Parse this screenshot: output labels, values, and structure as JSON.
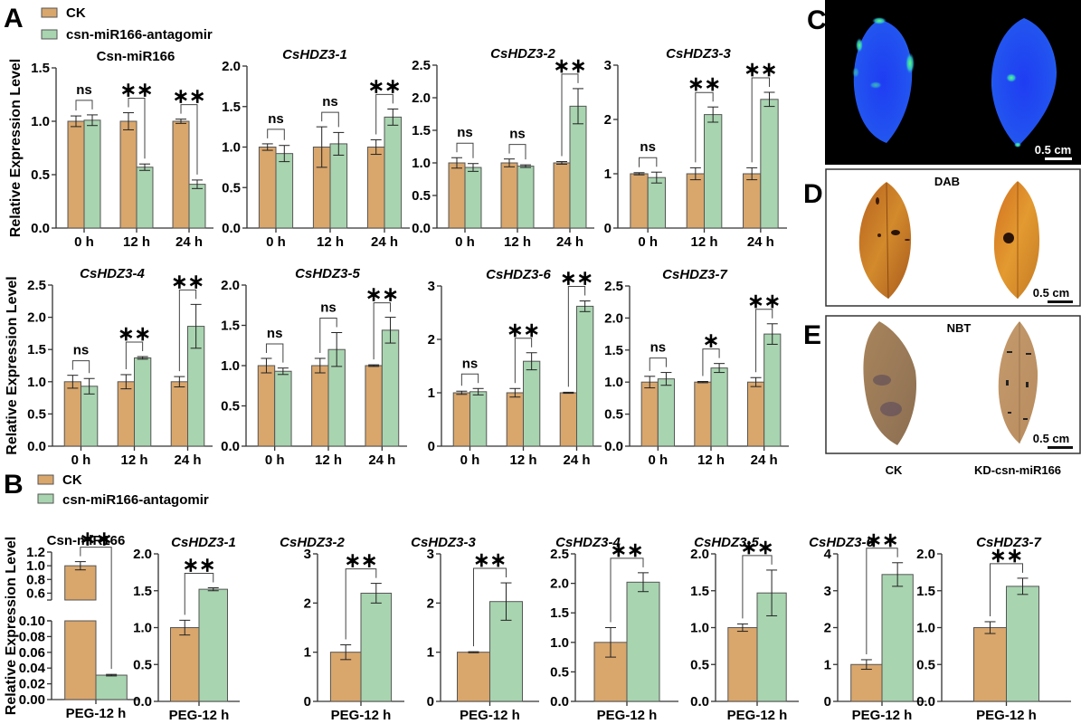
{
  "figure": {
    "panel_letters": [
      "A",
      "B",
      "C",
      "D",
      "E"
    ],
    "legend": [
      {
        "label": "CK",
        "color": "#d9a66c"
      },
      {
        "label": "csn-miR166-antagomir",
        "color": "#a8d4b0"
      }
    ],
    "y_axis_label": "Relative Expression Level",
    "colors": {
      "ck": "#d9a66c",
      "antagomir": "#a8d4b0",
      "axis": "#333333"
    }
  },
  "chart_data": [
    {
      "panel": "A",
      "type": "bar",
      "title": "Csn-miR166",
      "italic": false,
      "categories": [
        "0 h",
        "12 h",
        "24 h"
      ],
      "ylim": [
        0,
        1.5
      ],
      "yticks": [
        "0.0",
        "0.5",
        "1.0",
        "1.5"
      ],
      "ylabel": "Relative Expression Level",
      "series": [
        {
          "name": "CK",
          "values": [
            1.0,
            1.0,
            1.0
          ],
          "errors": [
            0.05,
            0.08,
            0.02
          ]
        },
        {
          "name": "csn-miR166-antagomir",
          "values": [
            1.01,
            0.57,
            0.41
          ],
          "errors": [
            0.05,
            0.03,
            0.04
          ]
        }
      ],
      "significance": [
        "ns",
        "**",
        "**"
      ]
    },
    {
      "panel": "A",
      "type": "bar",
      "title": "CsHDZ3-1",
      "italic": true,
      "categories": [
        "0 h",
        "12 h",
        "24 h"
      ],
      "ylim": [
        0,
        2.0
      ],
      "yticks": [
        "0.0",
        "0.5",
        "1.0",
        "1.5",
        "2.0"
      ],
      "ylabel": "",
      "series": [
        {
          "name": "CK",
          "values": [
            1.0,
            1.0,
            1.0
          ],
          "errors": [
            0.04,
            0.25,
            0.09
          ]
        },
        {
          "name": "csn-miR166-antagomir",
          "values": [
            0.92,
            1.04,
            1.37
          ],
          "errors": [
            0.1,
            0.14,
            0.1
          ]
        }
      ],
      "significance": [
        "ns",
        "ns",
        "**"
      ]
    },
    {
      "panel": "A",
      "type": "bar",
      "title": "CsHDZ3-2",
      "italic": true,
      "categories": [
        "0 h",
        "12 h",
        "24 h"
      ],
      "ylim": [
        0,
        2.5
      ],
      "yticks": [
        "0.0",
        "0.5",
        "1.0",
        "1.5",
        "2.0",
        "2.5"
      ],
      "ylabel": "",
      "series": [
        {
          "name": "CK",
          "values": [
            1.0,
            1.0,
            1.0
          ],
          "errors": [
            0.08,
            0.06,
            0.02
          ]
        },
        {
          "name": "csn-miR166-antagomir",
          "values": [
            0.93,
            0.95,
            1.87
          ],
          "errors": [
            0.06,
            0.02,
            0.27
          ]
        }
      ],
      "significance": [
        "ns",
        "ns",
        "**"
      ]
    },
    {
      "panel": "A",
      "type": "bar",
      "title": "CsHDZ3-3",
      "italic": true,
      "categories": [
        "0 h",
        "12 h",
        "24 h"
      ],
      "ylim": [
        0,
        3
      ],
      "yticks": [
        "0",
        "1",
        "2",
        "3"
      ],
      "ylabel": "",
      "series": [
        {
          "name": "CK",
          "values": [
            1.0,
            1.0,
            1.0
          ],
          "errors": [
            0.02,
            0.11,
            0.11
          ]
        },
        {
          "name": "csn-miR166-antagomir",
          "values": [
            0.93,
            2.09,
            2.37
          ],
          "errors": [
            0.1,
            0.14,
            0.13
          ]
        }
      ],
      "significance": [
        "ns",
        "**",
        "**"
      ]
    },
    {
      "panel": "A",
      "type": "bar",
      "title": "CsHDZ3-4",
      "italic": true,
      "categories": [
        "0 h",
        "12 h",
        "24 h"
      ],
      "ylim": [
        0,
        2.5
      ],
      "yticks": [
        "0.0",
        "0.5",
        "1.0",
        "1.5",
        "2.0",
        "2.5"
      ],
      "ylabel": "Relative Expression Level",
      "series": [
        {
          "name": "CK",
          "values": [
            1.0,
            1.0,
            1.0
          ],
          "errors": [
            0.1,
            0.11,
            0.08
          ]
        },
        {
          "name": "csn-miR166-antagomir",
          "values": [
            0.93,
            1.37,
            1.86
          ],
          "errors": [
            0.12,
            0.02,
            0.34
          ]
        }
      ],
      "significance": [
        "ns",
        "**",
        "**"
      ]
    },
    {
      "panel": "A",
      "type": "bar",
      "title": "CsHDZ3-5",
      "italic": true,
      "categories": [
        "0 h",
        "12 h",
        "24 h"
      ],
      "ylim": [
        0,
        2.0
      ],
      "yticks": [
        "0.0",
        "0.5",
        "1.0",
        "1.5",
        "2.0"
      ],
      "ylabel": "",
      "series": [
        {
          "name": "CK",
          "values": [
            1.0,
            1.0,
            1.0
          ],
          "errors": [
            0.09,
            0.09,
            0.01
          ]
        },
        {
          "name": "csn-miR166-antagomir",
          "values": [
            0.93,
            1.2,
            1.44
          ],
          "errors": [
            0.04,
            0.21,
            0.16
          ]
        }
      ],
      "significance": [
        "ns",
        "ns",
        "**"
      ]
    },
    {
      "panel": "A",
      "type": "bar",
      "title": "CsHDZ3-6",
      "italic": true,
      "categories": [
        "0 h",
        "12 h",
        "24 h"
      ],
      "ylim": [
        0,
        3
      ],
      "yticks": [
        "0",
        "1",
        "2",
        "3"
      ],
      "ylabel": "",
      "series": [
        {
          "name": "CK",
          "values": [
            1.0,
            1.0,
            1.0
          ],
          "errors": [
            0.03,
            0.08,
            0.01
          ]
        },
        {
          "name": "csn-miR166-antagomir",
          "values": [
            1.02,
            1.59,
            2.62
          ],
          "errors": [
            0.06,
            0.16,
            0.1
          ]
        }
      ],
      "significance": [
        "ns",
        "**",
        "**"
      ]
    },
    {
      "panel": "A",
      "type": "bar",
      "title": "CsHDZ3-7",
      "italic": true,
      "categories": [
        "0 h",
        "12 h",
        "24 h"
      ],
      "ylim": [
        0,
        2.5
      ],
      "yticks": [
        "0.0",
        "0.5",
        "1.0",
        "1.5",
        "2.0",
        "2.5"
      ],
      "ylabel": "",
      "series": [
        {
          "name": "CK",
          "values": [
            1.0,
            1.0,
            1.0
          ],
          "errors": [
            0.09,
            0.01,
            0.07
          ]
        },
        {
          "name": "csn-miR166-antagomir",
          "values": [
            1.05,
            1.22,
            1.75
          ],
          "errors": [
            0.1,
            0.07,
            0.16
          ]
        }
      ],
      "significance": [
        "ns",
        "*",
        "**"
      ]
    },
    {
      "panel": "B",
      "type": "bar",
      "title": "Csn-miR166",
      "italic": false,
      "categories": [
        "PEG-12 h"
      ],
      "broken_axis": true,
      "ylim_lower": [
        0,
        0.1
      ],
      "ylim_upper": [
        0.5,
        1.2
      ],
      "yticks_lower": [
        "0.00",
        "0.02",
        "0.04",
        "0.06",
        "0.08",
        "0.10"
      ],
      "yticks_upper": [
        "0.6",
        "0.8",
        "1.0",
        "1.2"
      ],
      "ylabel": "Relative Expression Level",
      "series": [
        {
          "name": "CK",
          "values": [
            1.0
          ],
          "errors": [
            0.06
          ]
        },
        {
          "name": "csn-miR166-antagomir",
          "values": [
            0.031
          ],
          "errors": [
            0.001
          ]
        }
      ],
      "significance": [
        "**"
      ]
    },
    {
      "panel": "B",
      "type": "bar",
      "title": "CsHDZ3-1",
      "italic": true,
      "categories": [
        "PEG-12 h"
      ],
      "ylim": [
        0,
        2.0
      ],
      "yticks": [
        "0.0",
        "0.5",
        "1.0",
        "1.5",
        "2.0"
      ],
      "ylabel": "",
      "series": [
        {
          "name": "CK",
          "values": [
            1.0
          ],
          "errors": [
            0.1
          ]
        },
        {
          "name": "csn-miR166-antagomir",
          "values": [
            1.52
          ],
          "errors": [
            0.02
          ]
        }
      ],
      "significance": [
        "**"
      ]
    },
    {
      "panel": "B",
      "type": "bar",
      "title": "CsHDZ3-2",
      "italic": true,
      "categories": [
        "PEG-12 h"
      ],
      "ylim": [
        0,
        3
      ],
      "yticks": [
        "0",
        "1",
        "2",
        "3"
      ],
      "ylabel": "",
      "series": [
        {
          "name": "CK",
          "values": [
            1.0
          ],
          "errors": [
            0.15
          ]
        },
        {
          "name": "csn-miR166-antagomir",
          "values": [
            2.2
          ],
          "errors": [
            0.2
          ]
        }
      ],
      "significance": [
        "**"
      ]
    },
    {
      "panel": "B",
      "type": "bar",
      "title": "CsHDZ3-3",
      "italic": true,
      "categories": [
        "PEG-12 h"
      ],
      "ylim": [
        0,
        3
      ],
      "yticks": [
        "0",
        "1",
        "2",
        "3"
      ],
      "ylabel": "",
      "series": [
        {
          "name": "CK",
          "values": [
            1.0
          ],
          "errors": [
            0.01
          ]
        },
        {
          "name": "csn-miR166-antagomir",
          "values": [
            2.03
          ],
          "errors": [
            0.38
          ]
        }
      ],
      "significance": [
        "**"
      ]
    },
    {
      "panel": "B",
      "type": "bar",
      "title": "CsHDZ3-4",
      "italic": true,
      "categories": [
        "PEG-12 h"
      ],
      "ylim": [
        0,
        2.5
      ],
      "yticks": [
        "0.0",
        "0.5",
        "1.0",
        "1.5",
        "2.0",
        "2.5"
      ],
      "ylabel": "",
      "series": [
        {
          "name": "CK",
          "values": [
            1.0
          ],
          "errors": [
            0.25
          ]
        },
        {
          "name": "csn-miR166-antagomir",
          "values": [
            2.02
          ],
          "errors": [
            0.16
          ]
        }
      ],
      "significance": [
        "**"
      ]
    },
    {
      "panel": "B",
      "type": "bar",
      "title": "CsHDZ3-5",
      "italic": true,
      "categories": [
        "PEG-12 h"
      ],
      "ylim": [
        0,
        2.0
      ],
      "yticks": [
        "0.0",
        "0.5",
        "1.0",
        "1.5",
        "2.0"
      ],
      "ylabel": "",
      "series": [
        {
          "name": "CK",
          "values": [
            1.0
          ],
          "errors": [
            0.05
          ]
        },
        {
          "name": "csn-miR166-antagomir",
          "values": [
            1.47
          ],
          "errors": [
            0.31
          ]
        }
      ],
      "significance": [
        "**"
      ]
    },
    {
      "panel": "B",
      "type": "bar",
      "title": "CsHDZ3-6",
      "italic": true,
      "categories": [
        "PEG-12 h"
      ],
      "ylim": [
        0,
        4
      ],
      "yticks": [
        "0",
        "1",
        "2",
        "3",
        "4"
      ],
      "ylabel": "",
      "series": [
        {
          "name": "CK",
          "values": [
            1.0
          ],
          "errors": [
            0.13
          ]
        },
        {
          "name": "csn-miR166-antagomir",
          "values": [
            3.44
          ],
          "errors": [
            0.32
          ]
        }
      ],
      "significance": [
        "**"
      ]
    },
    {
      "panel": "B",
      "type": "bar",
      "title": "CsHDZ3-7",
      "italic": true,
      "categories": [
        "PEG-12 h"
      ],
      "ylim": [
        0,
        2.0
      ],
      "yticks": [
        "0.0",
        "0.5",
        "1.0",
        "1.5",
        "2.0"
      ],
      "ylabel": "",
      "series": [
        {
          "name": "CK",
          "values": [
            1.0
          ],
          "errors": [
            0.08
          ]
        },
        {
          "name": "csn-miR166-antagomir",
          "values": [
            1.56
          ],
          "errors": [
            0.11
          ]
        }
      ],
      "significance": [
        "**"
      ]
    }
  ],
  "images": {
    "C": {
      "scale_bar": "0.5 cm"
    },
    "D": {
      "title": "DAB",
      "scale_bar": "0.5 cm"
    },
    "E": {
      "title": "NBT",
      "scale_bar": "0.5 cm"
    },
    "column_labels": [
      "CK",
      "KD-csn-miR166"
    ]
  }
}
